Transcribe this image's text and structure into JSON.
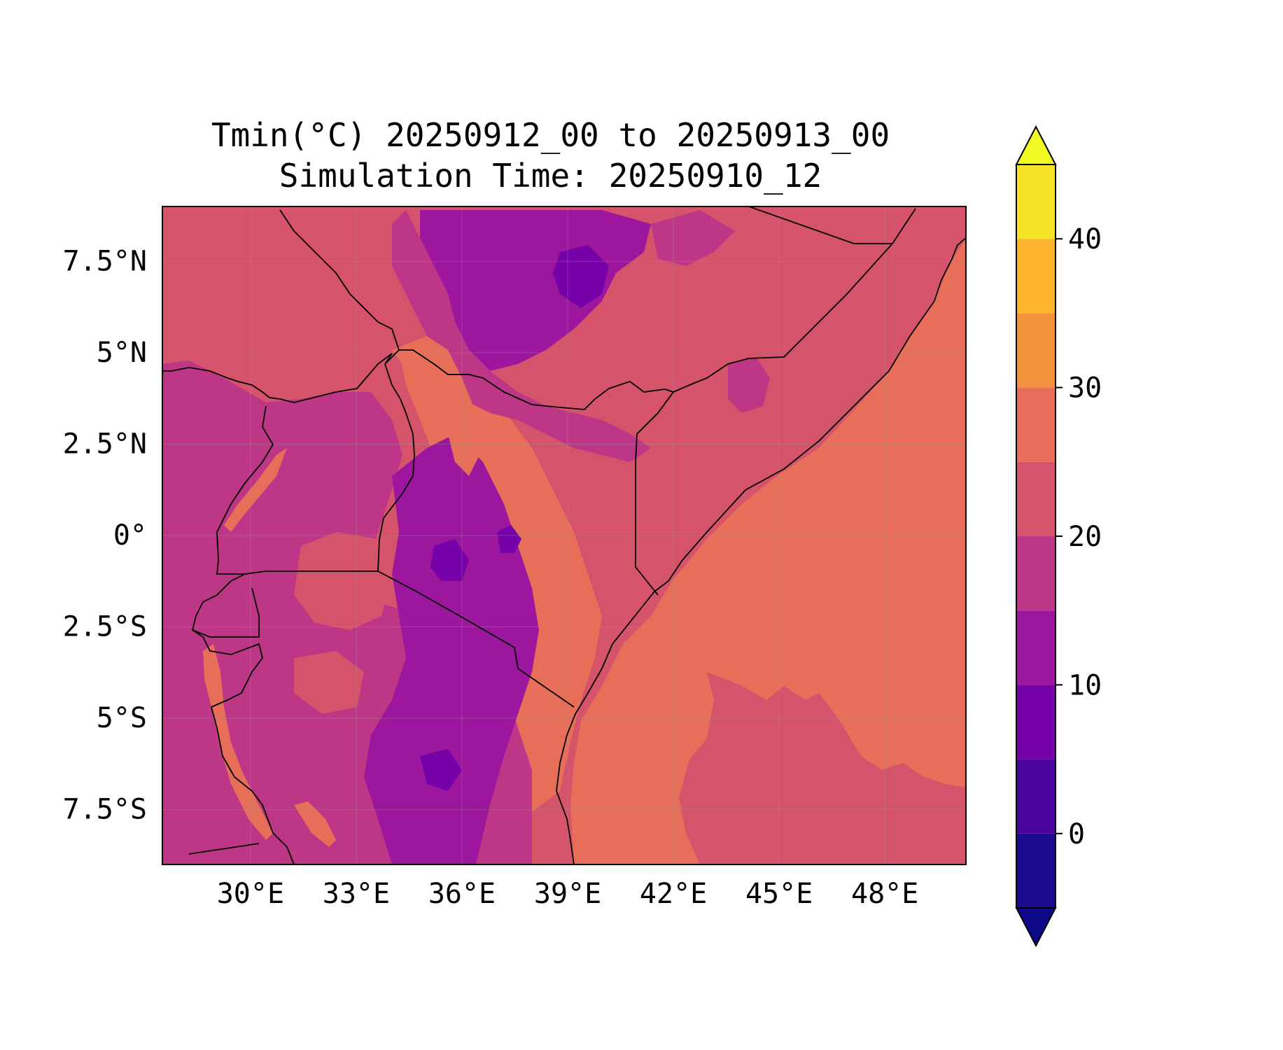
{
  "title": "Tmin(°C) 20250912_00 to 20250913_00",
  "subtitle": "Simulation Time: 20250910_12",
  "map": {
    "lon_range": [
      27.5,
      50.3
    ],
    "lat_range": [
      -9.0,
      9.0
    ],
    "x_ticks": [
      {
        "value": 30,
        "label": "30°E"
      },
      {
        "value": 33,
        "label": "33°E"
      },
      {
        "value": 36,
        "label": "36°E"
      },
      {
        "value": 39,
        "label": "39°E"
      },
      {
        "value": 42,
        "label": "42°E"
      },
      {
        "value": 45,
        "label": "45°E"
      },
      {
        "value": 48,
        "label": "48°E"
      }
    ],
    "y_ticks": [
      {
        "value": 7.5,
        "label": "7.5°N"
      },
      {
        "value": 5,
        "label": "5°N"
      },
      {
        "value": 2.5,
        "label": "2.5°N"
      },
      {
        "value": 0,
        "label": "0°"
      },
      {
        "value": -2.5,
        "label": "2.5°S"
      },
      {
        "value": -5,
        "label": "5°S"
      },
      {
        "value": -7.5,
        "label": "7.5°S"
      }
    ],
    "gridlines": true,
    "background_color": "#d5536b"
  },
  "colorbar": {
    "levels": [
      -5,
      0,
      5,
      10,
      15,
      20,
      25,
      30,
      35,
      40,
      45
    ],
    "colors": [
      "#1a0c8d",
      "#4a049e",
      "#7601a8",
      "#9c179e",
      "#bd3786",
      "#d5536b",
      "#e76f5a",
      "#f5923e",
      "#fdb42e",
      "#f5e325"
    ],
    "under_color": "#0d0887",
    "over_color": "#f0f921",
    "ticks": [
      {
        "value": 0,
        "label": "0"
      },
      {
        "value": 10,
        "label": "10"
      },
      {
        "value": 20,
        "label": "20"
      },
      {
        "value": 30,
        "label": "30"
      },
      {
        "value": 40,
        "label": "40"
      }
    ],
    "extend": "both"
  }
}
